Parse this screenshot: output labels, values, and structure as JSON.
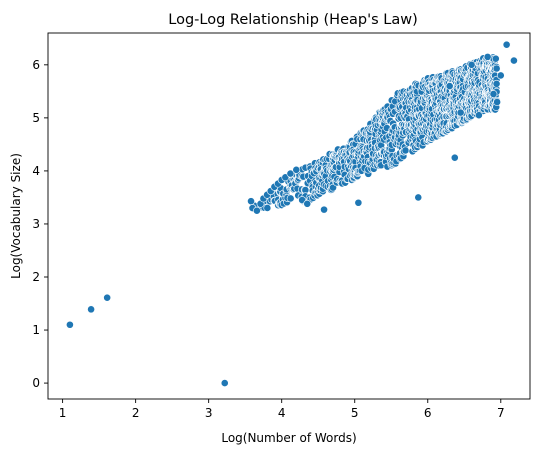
{
  "chart_data": {
    "type": "scatter",
    "title": "Log-Log Relationship (Heap's Law)",
    "xlabel": "Log(Number of Words)",
    "ylabel": "Log(Vocabulary Size)",
    "xlim": [
      0.8,
      7.4
    ],
    "ylim": [
      -0.3,
      6.6
    ],
    "xticks": [
      "1",
      "2",
      "3",
      "4",
      "5",
      "6",
      "7"
    ],
    "yticks": [
      "0",
      "1",
      "2",
      "3",
      "4",
      "5",
      "6"
    ],
    "grid": false,
    "marker_color": "#1f77b4",
    "marker_edge_color": "#ffffff",
    "points": [
      {
        "x": 1.1,
        "y": 1.1
      },
      {
        "x": 1.39,
        "y": 1.39
      },
      {
        "x": 1.61,
        "y": 1.61
      },
      {
        "x": 3.22,
        "y": 0.0
      },
      {
        "x": 3.58,
        "y": 3.43
      },
      {
        "x": 3.6,
        "y": 3.3
      },
      {
        "x": 3.66,
        "y": 3.25
      },
      {
        "x": 3.71,
        "y": 3.38
      },
      {
        "x": 3.75,
        "y": 3.48
      },
      {
        "x": 3.8,
        "y": 3.55
      },
      {
        "x": 3.85,
        "y": 3.62
      },
      {
        "x": 3.9,
        "y": 3.7
      },
      {
        "x": 3.95,
        "y": 3.76
      },
      {
        "x": 4.0,
        "y": 3.83
      },
      {
        "x": 4.05,
        "y": 3.88
      },
      {
        "x": 4.12,
        "y": 3.95
      },
      {
        "x": 4.2,
        "y": 4.02
      },
      {
        "x": 4.28,
        "y": 3.45
      },
      {
        "x": 4.35,
        "y": 3.38
      },
      {
        "x": 4.58,
        "y": 3.27
      },
      {
        "x": 5.05,
        "y": 3.4
      },
      {
        "x": 5.87,
        "y": 3.5
      },
      {
        "x": 6.37,
        "y": 4.25
      },
      {
        "x": 6.3,
        "y": 5.6
      },
      {
        "x": 6.45,
        "y": 5.1
      },
      {
        "x": 6.6,
        "y": 6.0
      },
      {
        "x": 6.7,
        "y": 5.05
      },
      {
        "x": 6.82,
        "y": 6.15
      },
      {
        "x": 6.9,
        "y": 5.45
      },
      {
        "x": 7.0,
        "y": 5.8
      },
      {
        "x": 7.08,
        "y": 6.38
      },
      {
        "x": 7.18,
        "y": 6.08
      }
    ],
    "cloud": {
      "x_range": [
        3.58,
        6.95
      ],
      "lower_edge": [
        [
          3.58,
          3.25
        ],
        [
          4.3,
          3.4
        ],
        [
          5.0,
          3.85
        ],
        [
          5.6,
          4.15
        ],
        [
          6.0,
          4.55
        ],
        [
          6.4,
          4.85
        ],
        [
          6.8,
          5.15
        ]
      ],
      "upper_edge": [
        [
          3.58,
          3.4
        ],
        [
          4.3,
          4.05
        ],
        [
          5.0,
          4.6
        ],
        [
          5.6,
          5.5
        ],
        [
          6.0,
          5.75
        ],
        [
          6.4,
          5.9
        ],
        [
          6.8,
          6.15
        ]
      ]
    }
  }
}
